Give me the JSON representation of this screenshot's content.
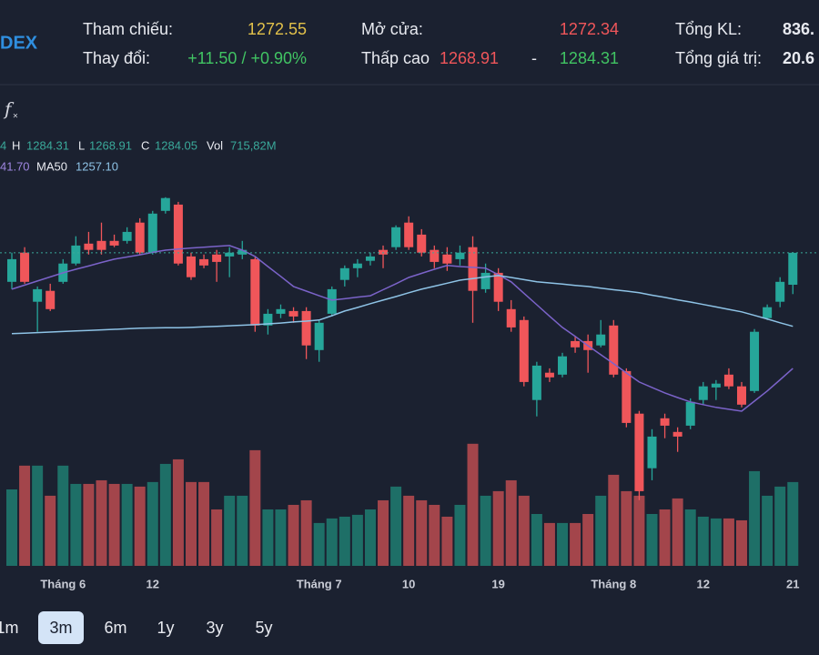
{
  "header": {
    "symbol": "DEX",
    "reference_label": "Tham chiếu:",
    "reference": "1272.55",
    "change_label": "Thay đổi:",
    "change": "+11.50 / +0.90%",
    "open_label": "Mở cửa:",
    "open": "1272.34",
    "range_label": "Thấp cao",
    "low": "1268.91",
    "range_sep": "-",
    "high": "1284.31",
    "volume_label": "Tổng KL:",
    "volume": "836.",
    "value_label": "Tổng giá trị:",
    "value": "20.6"
  },
  "legend": {
    "ohlc": [
      "4",
      "H",
      "1284.31",
      "L",
      "1268.91",
      "C",
      "1284.05",
      "Vol",
      "715,82M"
    ],
    "ma": [
      "41.70",
      "MA50",
      "1257.10"
    ]
  },
  "chart_data": {
    "type": "candlestick",
    "categories": [
      null,
      null,
      null,
      null,
      "Tháng 6",
      null,
      null,
      null,
      null,
      null,
      null,
      "12",
      null,
      null,
      null,
      null,
      null,
      null,
      null,
      null,
      null,
      null,
      null,
      null,
      "Tháng 7",
      null,
      null,
      null,
      null,
      null,
      null,
      "10",
      null,
      null,
      null,
      null,
      null,
      null,
      "19",
      null,
      null,
      null,
      null,
      null,
      null,
      null,
      null,
      "Tháng 8",
      null,
      null,
      null,
      null,
      null,
      null,
      "12",
      null,
      null,
      null,
      null,
      null,
      null,
      "21"
    ],
    "open": [
      1273.4,
      1284.1,
      1266.1,
      1270.1,
      1273.4,
      1280.1,
      1287.4,
      1288.4,
      1288.4,
      1288.4,
      1295.1,
      1284.1,
      1299.4,
      1301.7,
      1282.7,
      1281.7,
      1283.4,
      1282.7,
      1283.4,
      1281.7,
      1257.4,
      1261.7,
      1262.7,
      1262.7,
      1248.4,
      1261.7,
      1274.1,
      1278.4,
      1281.1,
      1285.1,
      1286.1,
      1295.1,
      1290.7,
      1285.1,
      1283.4,
      1281.7,
      1286.1,
      1270.7,
      1276.7,
      1263.4,
      1259.4,
      1230.1,
      1240.1,
      1239.4,
      1251.7,
      1251.7,
      1250.1,
      1257.4,
      1240.7,
      1225.1,
      1205.1,
      1223.4,
      1218.4,
      1220.7,
      1230.1,
      1234.7,
      1239.4,
      1235.1,
      1233.4,
      1260.1,
      1266.1,
      1272.34
    ],
    "high": [
      1284.1,
      1286.1,
      1271.7,
      1272.7,
      1281.7,
      1290.1,
      1291.7,
      1295.1,
      1290.7,
      1293.4,
      1296.7,
      1299.4,
      1304.4,
      1302.7,
      1284.1,
      1283.4,
      1285.1,
      1286.1,
      1288.4,
      1282.4,
      1263.4,
      1265.1,
      1264.1,
      1264.1,
      1259.4,
      1271.7,
      1279.4,
      1281.7,
      1284.1,
      1286.7,
      1294.1,
      1297.4,
      1292.7,
      1286.7,
      1286.1,
      1286.7,
      1290.1,
      1280.1,
      1278.4,
      1266.7,
      1260.7,
      1244.1,
      1241.7,
      1247.4,
      1253.4,
      1254.1,
      1259.4,
      1259.4,
      1241.7,
      1226.1,
      1219.4,
      1225.1,
      1220.1,
      1230.7,
      1236.7,
      1237.4,
      1241.7,
      1236.7,
      1256.1,
      1265.1,
      1275.1,
      1284.31
    ],
    "low": [
      1270.7,
      1272.7,
      1255.1,
      1262.7,
      1272.7,
      1279.4,
      1283.4,
      1283.4,
      1286.1,
      1287.4,
      1283.4,
      1283.4,
      1298.4,
      1279.4,
      1274.1,
      1278.4,
      1273.4,
      1275.1,
      1281.7,
      1255.1,
      1254.1,
      1260.1,
      1258.4,
      1245.1,
      1244.1,
      1260.7,
      1271.7,
      1275.1,
      1279.4,
      1278.4,
      1285.1,
      1285.1,
      1282.7,
      1278.4,
      1277.4,
      1279.4,
      1258.4,
      1269.4,
      1262.7,
      1255.1,
      1235.1,
      1224.1,
      1236.7,
      1238.4,
      1247.4,
      1240.1,
      1249.4,
      1238.4,
      1220.1,
      1193.4,
      1200.7,
      1216.1,
      1211.1,
      1219.4,
      1228.4,
      1230.1,
      1234.1,
      1227.4,
      1232.7,
      1259.4,
      1264.1,
      1268.91
    ],
    "close": [
      1281.7,
      1273.4,
      1270.7,
      1263.4,
      1280.1,
      1286.7,
      1285.1,
      1285.1,
      1286.7,
      1291.7,
      1284.1,
      1298.4,
      1304.1,
      1280.1,
      1275.1,
      1279.4,
      1280.7,
      1284.1,
      1285.1,
      1257.4,
      1261.7,
      1263.4,
      1260.7,
      1250.1,
      1258.4,
      1270.7,
      1278.4,
      1280.1,
      1282.7,
      1283.4,
      1293.4,
      1286.1,
      1284.1,
      1280.7,
      1280.1,
      1284.1,
      1270.1,
      1276.7,
      1266.1,
      1256.7,
      1236.7,
      1242.7,
      1238.4,
      1246.1,
      1249.4,
      1248.4,
      1254.1,
      1239.4,
      1221.7,
      1196.7,
      1216.7,
      1220.7,
      1216.7,
      1229.4,
      1235.1,
      1236.1,
      1235.1,
      1228.4,
      1255.1,
      1264.1,
      1273.4,
      1284.05
    ],
    "ylim": [
      1180,
      1310
    ],
    "colors": {
      "up": "#26a69a",
      "down": "#f0565a"
    },
    "volume": {
      "values": [
        653,
        856,
        856,
        599,
        856,
        700,
        700,
        731,
        700,
        700,
        677,
        716,
        871,
        910,
        716,
        716,
        482,
        599,
        599,
        988,
        482,
        482,
        521,
        560,
        366,
        405,
        420,
        436,
        482,
        560,
        677,
        599,
        560,
        521,
        420,
        521,
        1043,
        599,
        638,
        731,
        599,
        443,
        366,
        366,
        366,
        443,
        599,
        778,
        638,
        599,
        443,
        482,
        576,
        482,
        420,
        405,
        405,
        389,
        809,
        599,
        677,
        715.82
      ],
      "ylim": [
        0,
        1500
      ],
      "colors": {
        "up": "#1e6f67",
        "down": "#a3454b"
      }
    },
    "series": [
      {
        "color": "#7b63c9",
        "values": [
          1270.7,
          1272.2,
          1273.7,
          1275.2,
          1276.7,
          1278.0,
          1279.2,
          1280.5,
          1281.7,
          1282.5,
          1283.3,
          1284.2,
          1285.0,
          1285.4,
          1285.8,
          1286.1,
          1286.4,
          1286.7,
          1285.0,
          1282.7,
          1279.0,
          1275.4,
          1271.7,
          1270.0,
          1268.3,
          1266.7,
          1267.2,
          1267.8,
          1268.3,
          1270.5,
          1272.7,
          1275.0,
          1276.5,
          1278.0,
          1279.4,
          1279.0,
          1278.7,
          1278.4,
          1276.0,
          1273.4,
          1269.2,
          1265.0,
          1260.8,
          1256.7,
          1253.4,
          1250.0,
          1246.7,
          1243.4,
          1240.0,
          1236.7,
          1234.7,
          1232.7,
          1231.0,
          1229.4,
          1228.4,
          1227.4,
          1226.7,
          1226.0,
          1229.7,
          1233.4,
          1237.5,
          1241.7
        ]
      },
      {
        "name": "MA50",
        "color": "#8ec3e6",
        "values": [
          1254.4,
          1254.6,
          1254.8,
          1255.0,
          1255.2,
          1255.4,
          1255.6,
          1255.8,
          1256.0,
          1256.2,
          1256.4,
          1256.5,
          1256.6,
          1256.6,
          1256.7,
          1256.9,
          1257.1,
          1257.3,
          1257.5,
          1257.7,
          1258.0,
          1258.3,
          1258.7,
          1259.0,
          1259.4,
          1261.0,
          1262.7,
          1264.0,
          1265.4,
          1266.7,
          1268.0,
          1269.4,
          1270.7,
          1271.8,
          1272.9,
          1274.0,
          1274.6,
          1275.2,
          1275.7,
          1275.0,
          1274.2,
          1273.4,
          1273.0,
          1272.6,
          1272.1,
          1271.7,
          1271.1,
          1270.5,
          1270.0,
          1269.4,
          1268.5,
          1267.7,
          1266.8,
          1266.0,
          1265.1,
          1264.2,
          1263.3,
          1262.4,
          1261.1,
          1259.8,
          1258.4,
          1257.1
        ]
      }
    ]
  },
  "timeframes": {
    "options": [
      "1m",
      "3m",
      "6m",
      "1y",
      "3y",
      "5y"
    ],
    "selected": 1
  }
}
